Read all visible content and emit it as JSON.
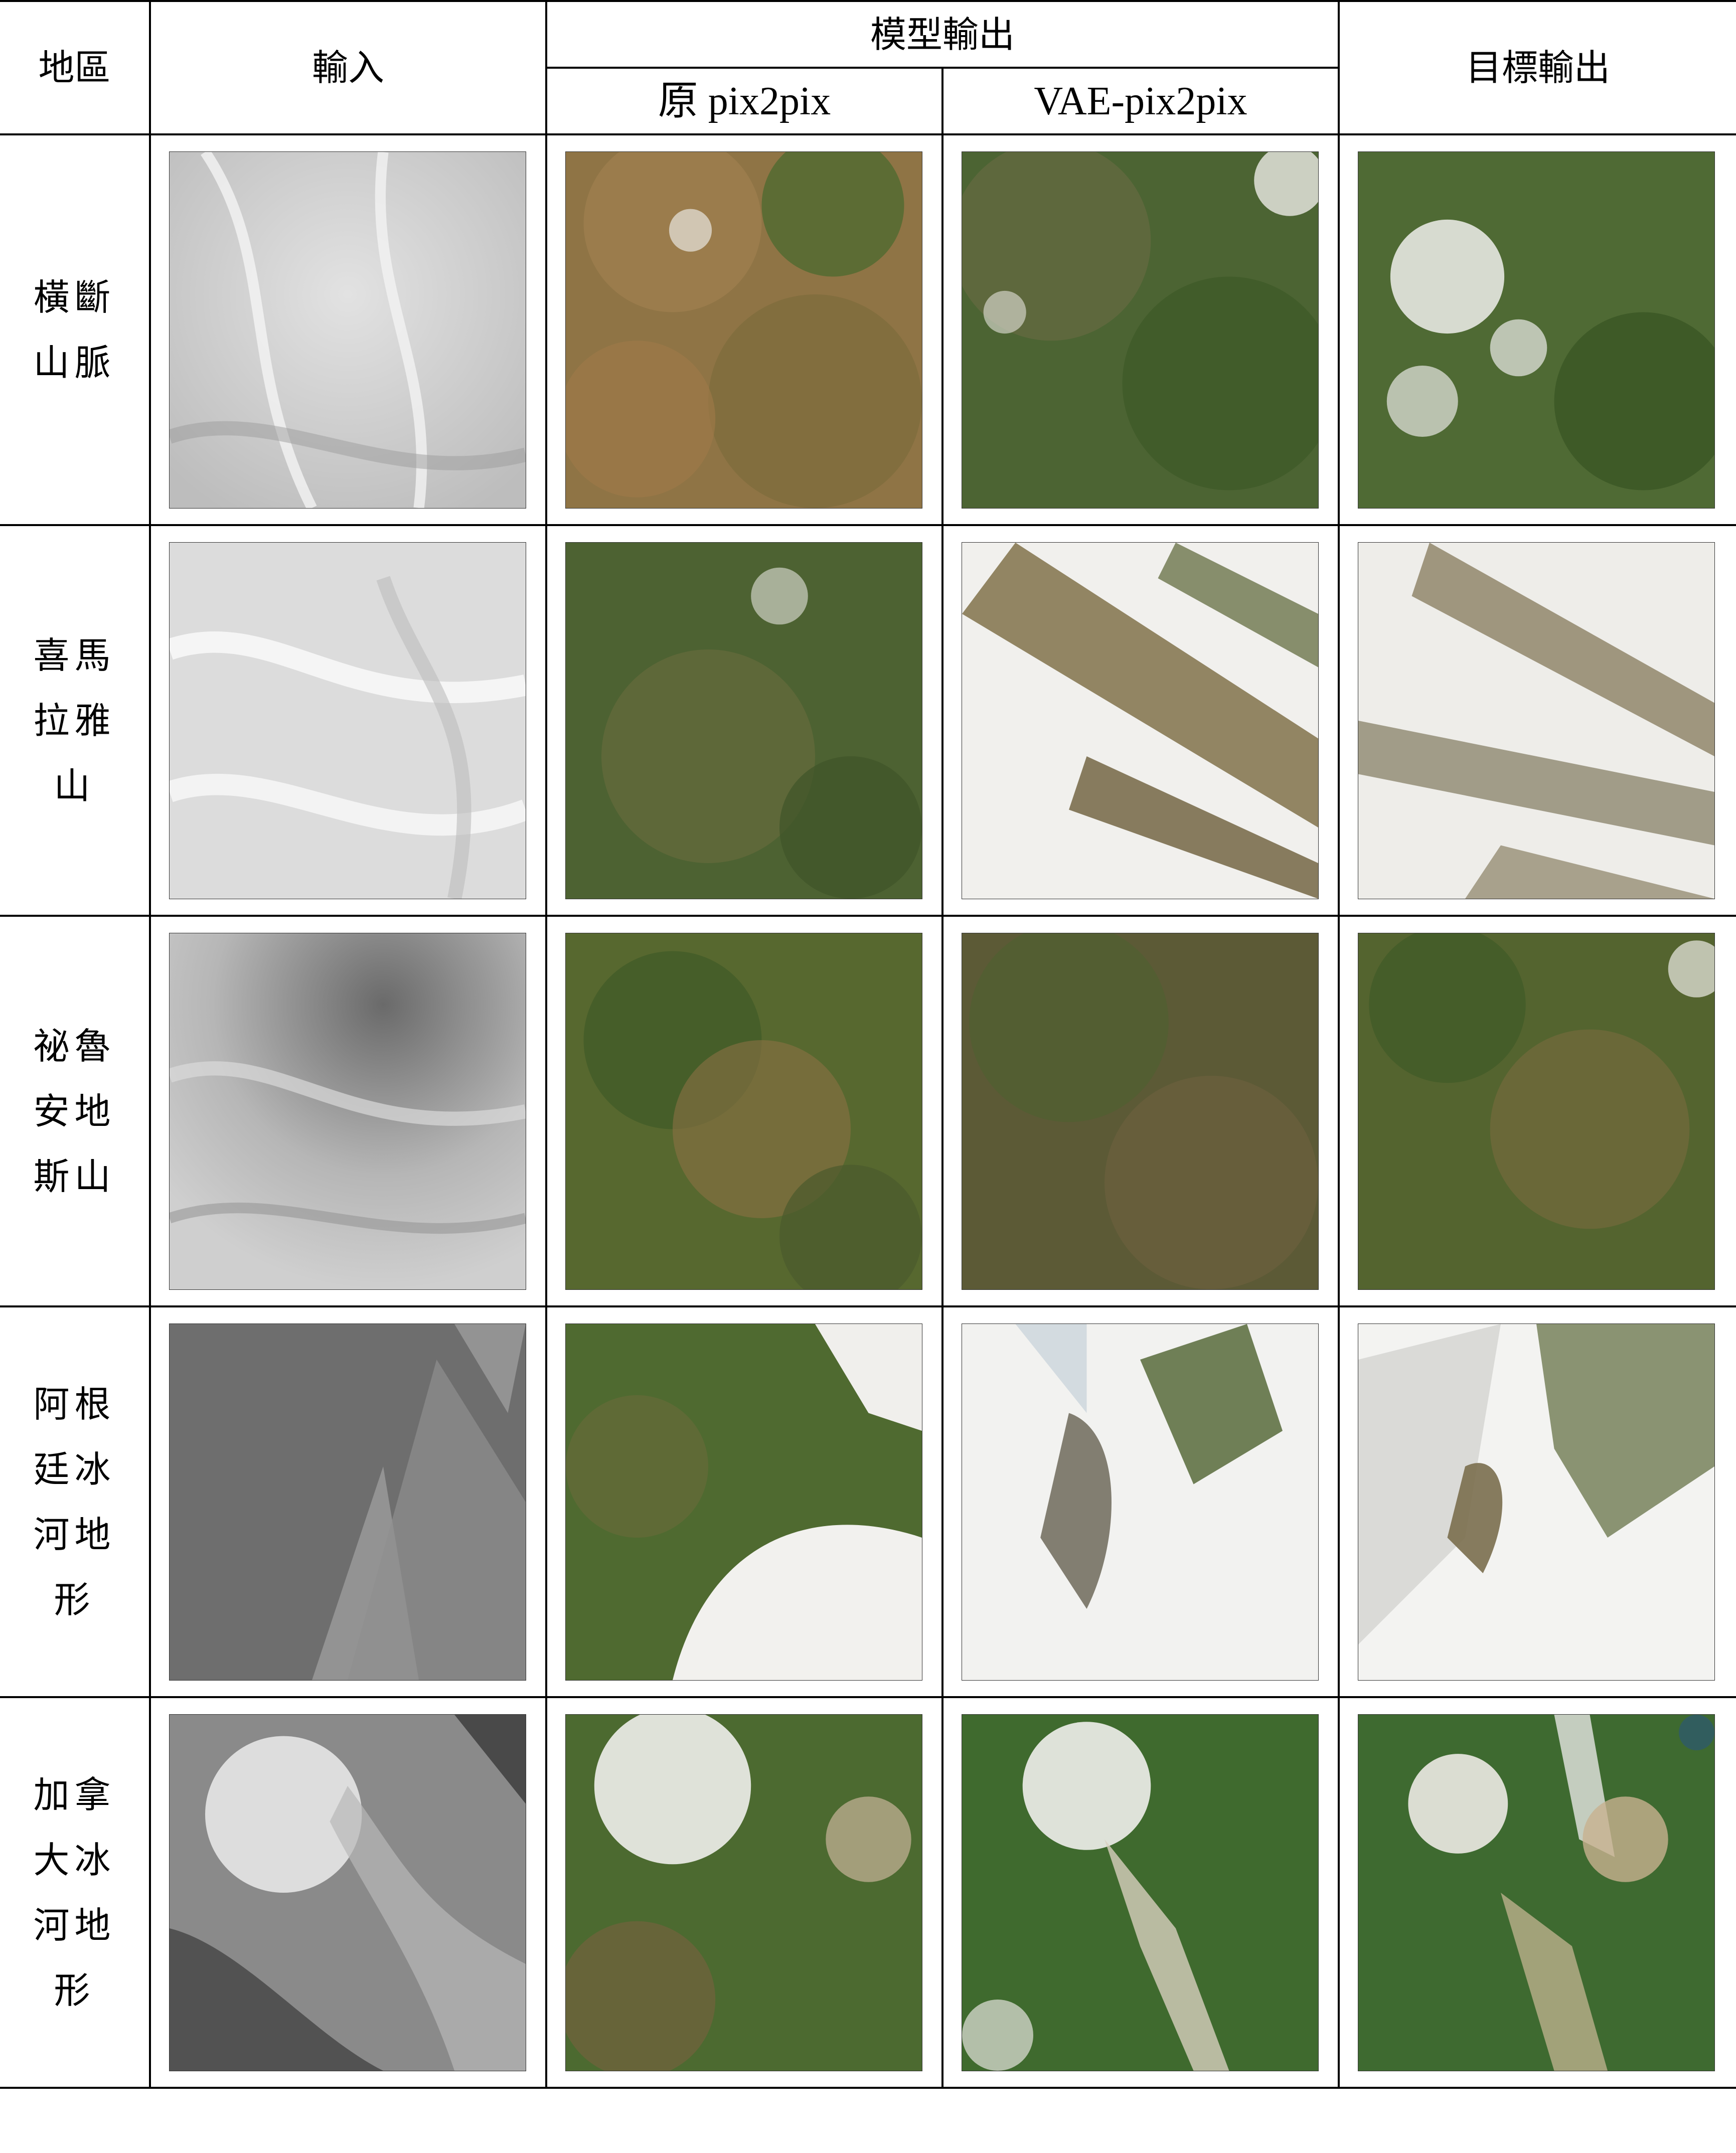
{
  "header": {
    "region": "地區",
    "input": "輸入",
    "model_output": "模型輸出",
    "original": "原 pix2pix",
    "vae": "VAE-pix2pix",
    "target": "目標輸出"
  },
  "rows": [
    {
      "region": "橫斷\n山脈"
    },
    {
      "region": "喜馬\n拉雅\n山"
    },
    {
      "region": "祕魯\n安地\n斯山"
    },
    {
      "region": "阿根\n廷冰\n河地\n形"
    },
    {
      "region": "加拿\n大冰\n河地\n形"
    }
  ],
  "colors": {
    "border": "#000000",
    "vegetation": "#4a6a2f",
    "dry_terrain": "#9a7a4a",
    "snow": "#f4f4f2",
    "heightmap_light": "#e6e6e6",
    "heightmap_dark": "#5a5a5a"
  }
}
